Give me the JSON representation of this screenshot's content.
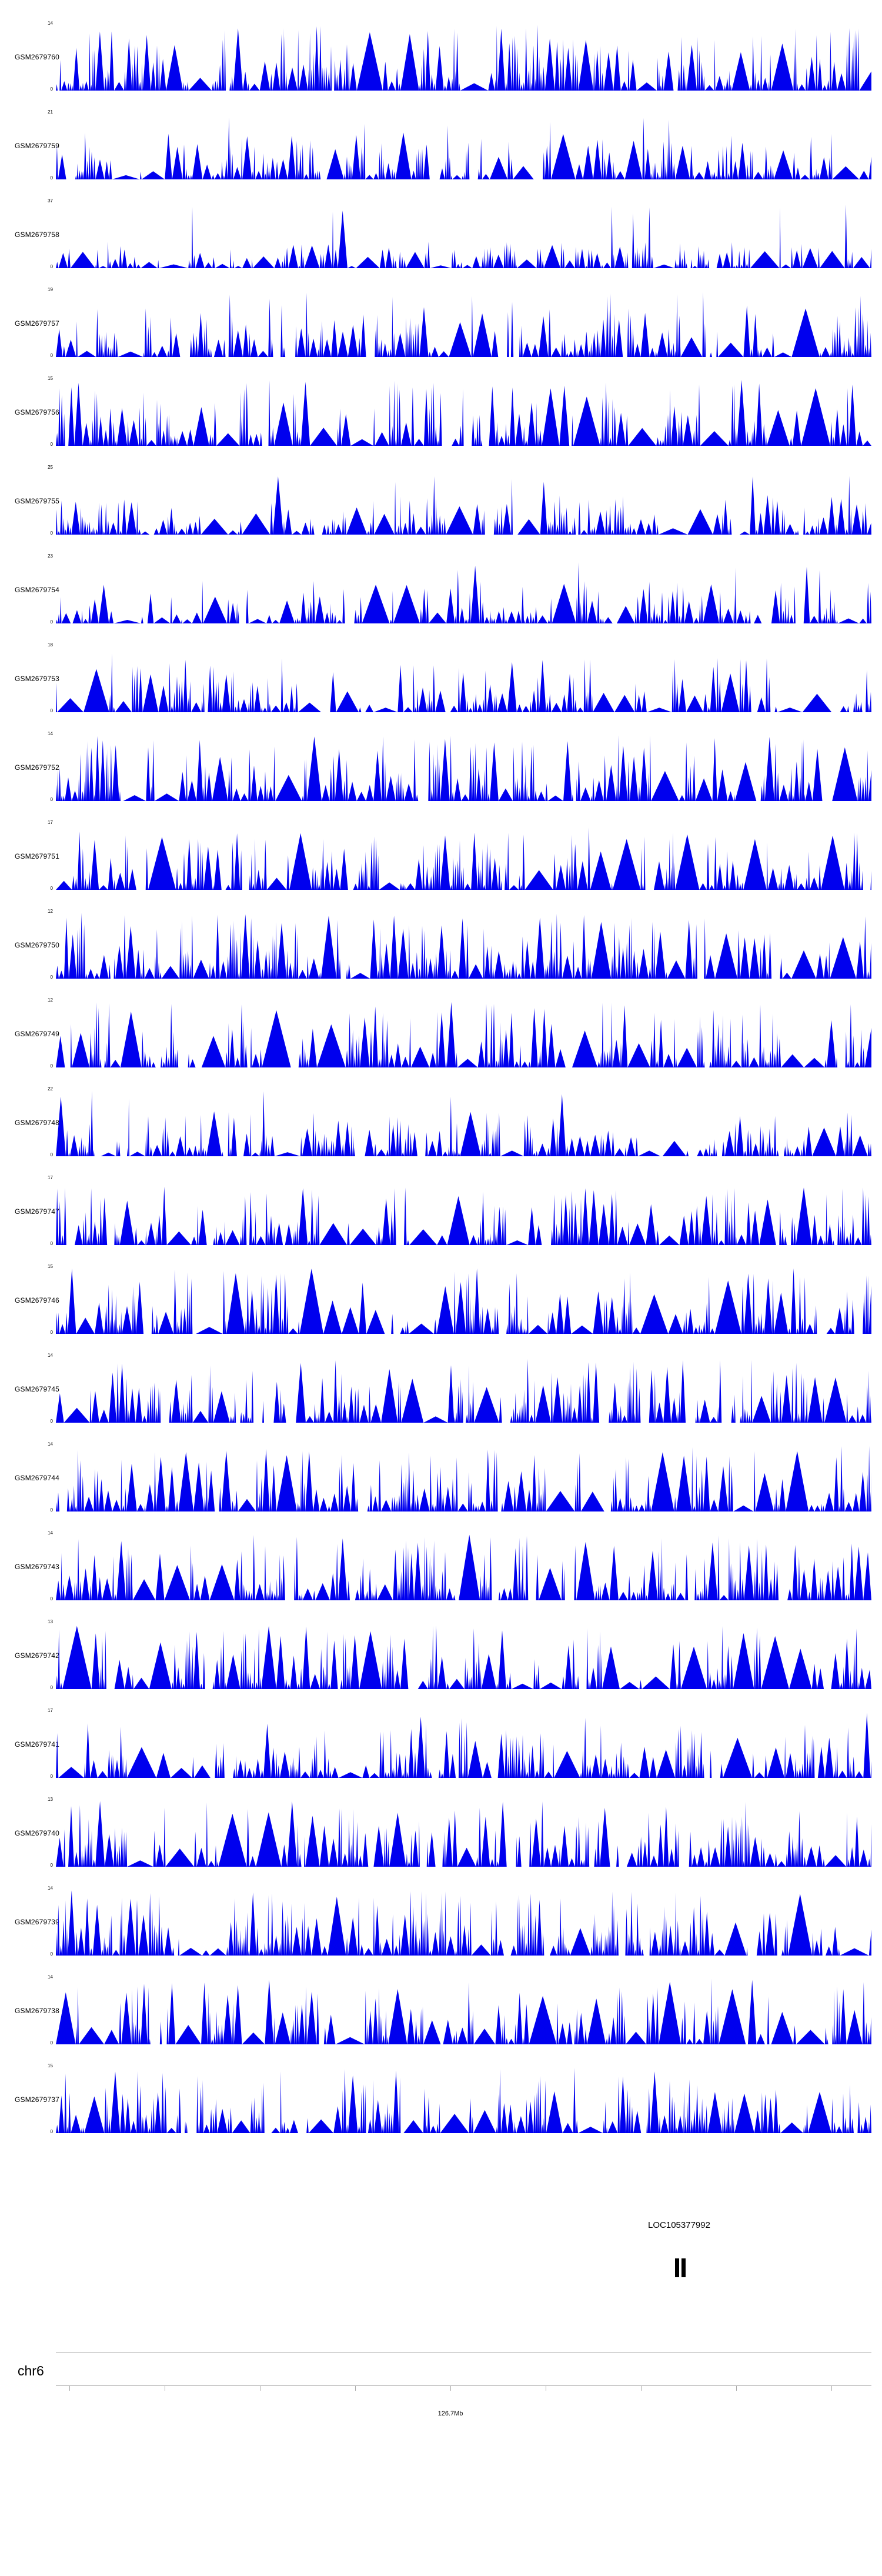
{
  "chart_data": {
    "type": "area",
    "description": "Genome browser read-coverage tracks (24 GSM samples) over a region of chr6 near 126.7Mb, with a gene annotation track below",
    "legend_position": "none",
    "grid": false,
    "tracks": [
      {
        "label": "GSM2679760",
        "ymax": 14,
        "ymin": 0
      },
      {
        "label": "GSM2679759",
        "ymax": 21,
        "ymin": 0
      },
      {
        "label": "GSM2679758",
        "ymax": 37,
        "ymin": 0
      },
      {
        "label": "GSM2679757",
        "ymax": 19,
        "ymin": 0
      },
      {
        "label": "GSM2679756",
        "ymax": 15,
        "ymin": 0
      },
      {
        "label": "GSM2679755",
        "ymax": 25,
        "ymin": 0
      },
      {
        "label": "GSM2679754",
        "ymax": 23,
        "ymin": 0
      },
      {
        "label": "GSM2679753",
        "ymax": 18,
        "ymin": 0
      },
      {
        "label": "GSM2679752",
        "ymax": 14,
        "ymin": 0
      },
      {
        "label": "GSM2679751",
        "ymax": 17,
        "ymin": 0
      },
      {
        "label": "GSM2679750",
        "ymax": 12,
        "ymin": 0
      },
      {
        "label": "GSM2679749",
        "ymax": 12,
        "ymin": 0
      },
      {
        "label": "GSM2679748",
        "ymax": 22,
        "ymin": 0
      },
      {
        "label": "GSM2679747",
        "ymax": 17,
        "ymin": 0
      },
      {
        "label": "GSM2679746",
        "ymax": 15,
        "ymin": 0
      },
      {
        "label": "GSM2679745",
        "ymax": 14,
        "ymin": 0
      },
      {
        "label": "GSM2679744",
        "ymax": 14,
        "ymin": 0
      },
      {
        "label": "GSM2679743",
        "ymax": 14,
        "ymin": 0
      },
      {
        "label": "GSM2679742",
        "ymax": 13,
        "ymin": 0
      },
      {
        "label": "GSM2679741",
        "ymax": 17,
        "ymin": 0
      },
      {
        "label": "GSM2679740",
        "ymax": 13,
        "ymin": 0
      },
      {
        "label": "GSM2679739",
        "ymax": 14,
        "ymin": 0
      },
      {
        "label": "GSM2679738",
        "ymax": 14,
        "ymin": 0
      },
      {
        "label": "GSM2679737",
        "ymax": 15,
        "ymin": 0
      }
    ],
    "gene_track": {
      "gene_label": "LOC105377992",
      "exon_count": 2
    },
    "colors": {
      "signal": "#0000EE",
      "gene": "#000000",
      "axis": "#a8a8a8",
      "text": "#000000"
    }
  },
  "chrom_axis": {
    "chromosome_label": "chr6",
    "position_label": "126.7Mb"
  }
}
